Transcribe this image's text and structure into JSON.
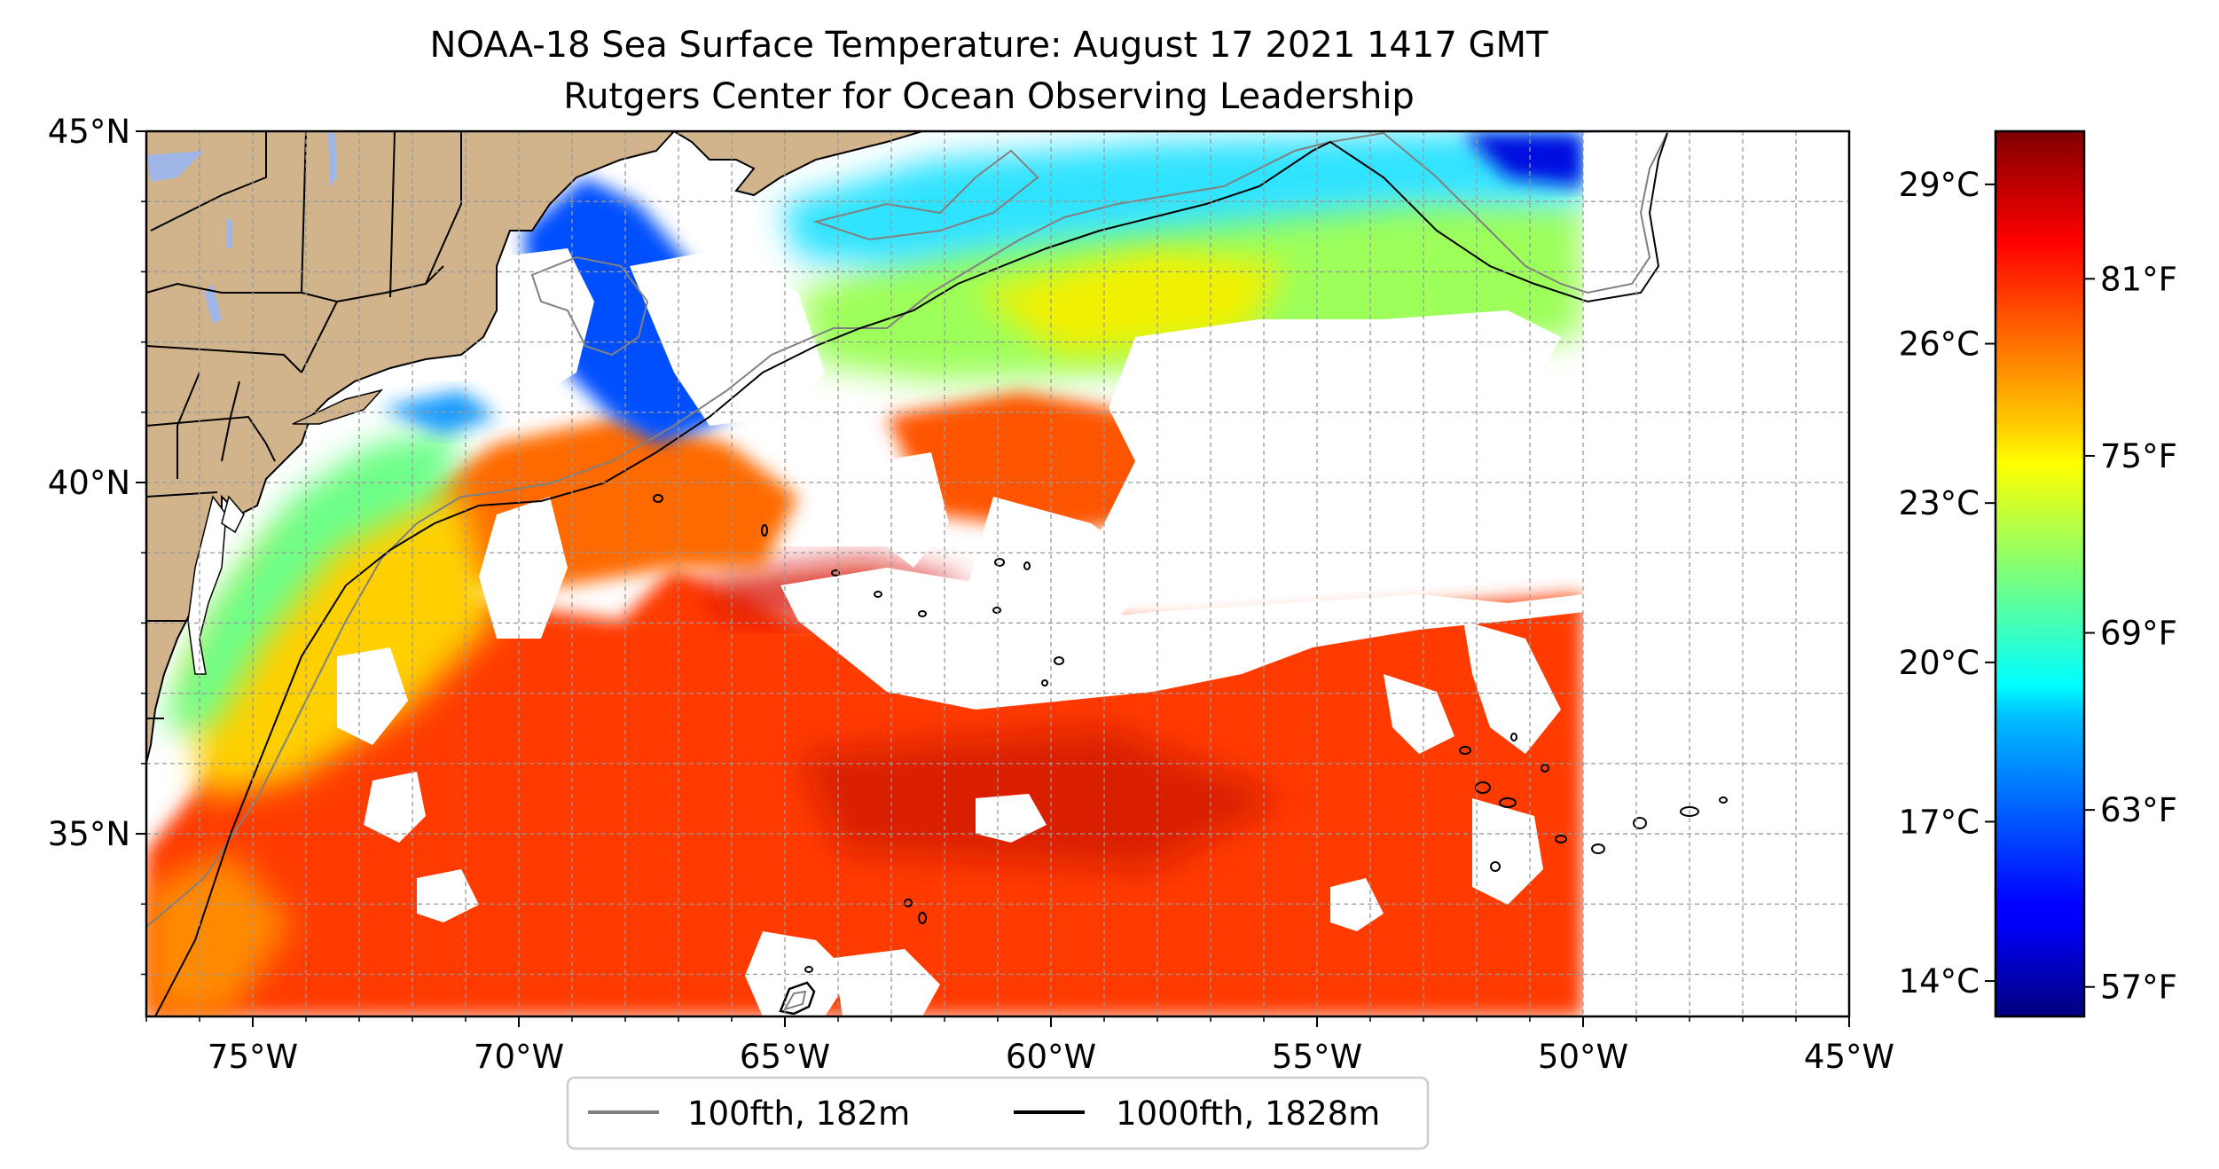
{
  "title_line1": "NOAA-18 Sea Surface Temperature: August 17 2021 1417 GMT",
  "title_line2": "Rutgers Center for Ocean Observing Leadership",
  "map": {
    "lon_range": [
      -77,
      -45
    ],
    "lat_range": [
      32.4,
      45
    ],
    "x_ticks": [
      {
        "lon": -75,
        "label": "75°W"
      },
      {
        "lon": -70,
        "label": "70°W"
      },
      {
        "lon": -65,
        "label": "65°W"
      },
      {
        "lon": -60,
        "label": "60°W"
      },
      {
        "lon": -55,
        "label": "55°W"
      },
      {
        "lon": -50,
        "label": "50°W"
      },
      {
        "lon": -45,
        "label": "45°W"
      }
    ],
    "y_ticks": [
      {
        "lat": 35,
        "label": "35°N"
      },
      {
        "lat": 40,
        "label": "40°N"
      },
      {
        "lat": 45,
        "label": "45°N"
      }
    ],
    "gridlines": true,
    "land_color": "#d2b48c",
    "lake_color": "#9fb6e6"
  },
  "colorbar": {
    "colormap": "jet",
    "celsius_labels": [
      {
        "value": 29,
        "label": "29°C"
      },
      {
        "value": 26,
        "label": "26°C"
      },
      {
        "value": 23,
        "label": "23°C"
      },
      {
        "value": 20,
        "label": "20°C"
      },
      {
        "value": 17,
        "label": "17°C"
      },
      {
        "value": 14,
        "label": "14°C"
      }
    ],
    "fahrenheit_labels": [
      {
        "value": 81,
        "label": "81°F"
      },
      {
        "value": 75,
        "label": "75°F"
      },
      {
        "value": 69,
        "label": "69°F"
      },
      {
        "value": 63,
        "label": "63°F"
      },
      {
        "value": 57,
        "label": "57°F"
      }
    ],
    "range_f": [
      56,
      86
    ]
  },
  "legend": {
    "placement": "bottom-center",
    "items": [
      {
        "label": "100fth, 182m",
        "color": "#808080"
      },
      {
        "label": "1000fth, 1828m",
        "color": "#000000"
      }
    ]
  }
}
